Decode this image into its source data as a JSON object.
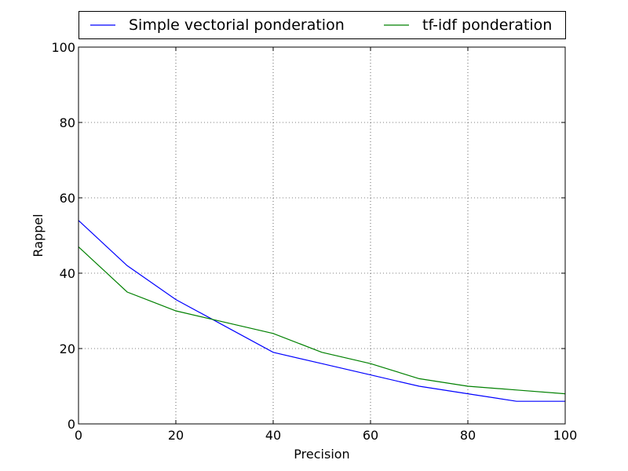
{
  "chart_data": {
    "type": "line",
    "title": "",
    "xlabel": "Precision",
    "ylabel": "Rappel",
    "xlim": [
      0,
      100
    ],
    "ylim": [
      0,
      100
    ],
    "xticks": [
      "0",
      "20",
      "40",
      "60",
      "80",
      "100"
    ],
    "yticks": [
      "0",
      "20",
      "40",
      "60",
      "80",
      "100"
    ],
    "grid": true,
    "legend_position": "top, outside plot, two columns",
    "series": [
      {
        "name": "Simple vectorial ponderation",
        "color": "#0000ff",
        "x": [
          0,
          10,
          20,
          30,
          40,
          50,
          60,
          70,
          80,
          90,
          100
        ],
        "y": [
          54,
          42,
          33,
          26,
          19,
          16,
          13,
          10,
          8,
          6,
          6
        ]
      },
      {
        "name": "tf-idf ponderation",
        "color": "#008000",
        "x": [
          0,
          10,
          20,
          30,
          40,
          50,
          60,
          70,
          80,
          90,
          100
        ],
        "y": [
          47,
          35,
          30,
          27,
          24,
          19,
          16,
          12,
          10,
          9,
          8
        ]
      }
    ]
  }
}
